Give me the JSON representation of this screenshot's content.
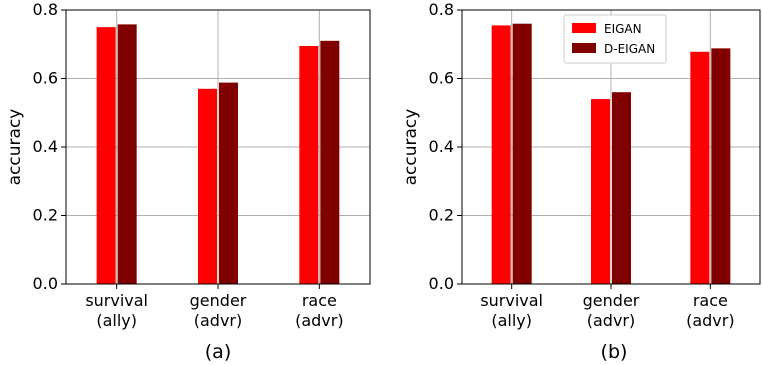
{
  "chart_data": [
    {
      "type": "bar",
      "caption": "(a)",
      "ylabel": "accuracy",
      "ylim": [
        0,
        0.8
      ],
      "yticks": [
        "0.0",
        "0.2",
        "0.4",
        "0.6",
        "0.8"
      ],
      "grid": true,
      "categories": [
        {
          "line1": "survival",
          "line2": "(ally)"
        },
        {
          "line1": "gender",
          "line2": "(advr)"
        },
        {
          "line1": "race",
          "line2": "(advr)"
        }
      ],
      "series": [
        {
          "name": "EIGAN",
          "color": "#ff0000",
          "values": [
            0.75,
            0.57,
            0.695
          ]
        },
        {
          "name": "D-EIGAN",
          "color": "#800000",
          "values": [
            0.758,
            0.588,
            0.71
          ]
        }
      ],
      "legend": null
    },
    {
      "type": "bar",
      "caption": "(b)",
      "ylabel": "accuracy",
      "ylim": [
        0,
        0.8
      ],
      "yticks": [
        "0.0",
        "0.2",
        "0.4",
        "0.6",
        "0.8"
      ],
      "grid": true,
      "categories": [
        {
          "line1": "survival",
          "line2": "(ally)"
        },
        {
          "line1": "gender",
          "line2": "(advr)"
        },
        {
          "line1": "race",
          "line2": "(advr)"
        }
      ],
      "series": [
        {
          "name": "EIGAN",
          "color": "#ff0000",
          "values": [
            0.755,
            0.54,
            0.678
          ]
        },
        {
          "name": "D-EIGAN",
          "color": "#800000",
          "values": [
            0.76,
            0.56,
            0.688
          ]
        }
      ],
      "legend": "top-center"
    }
  ]
}
